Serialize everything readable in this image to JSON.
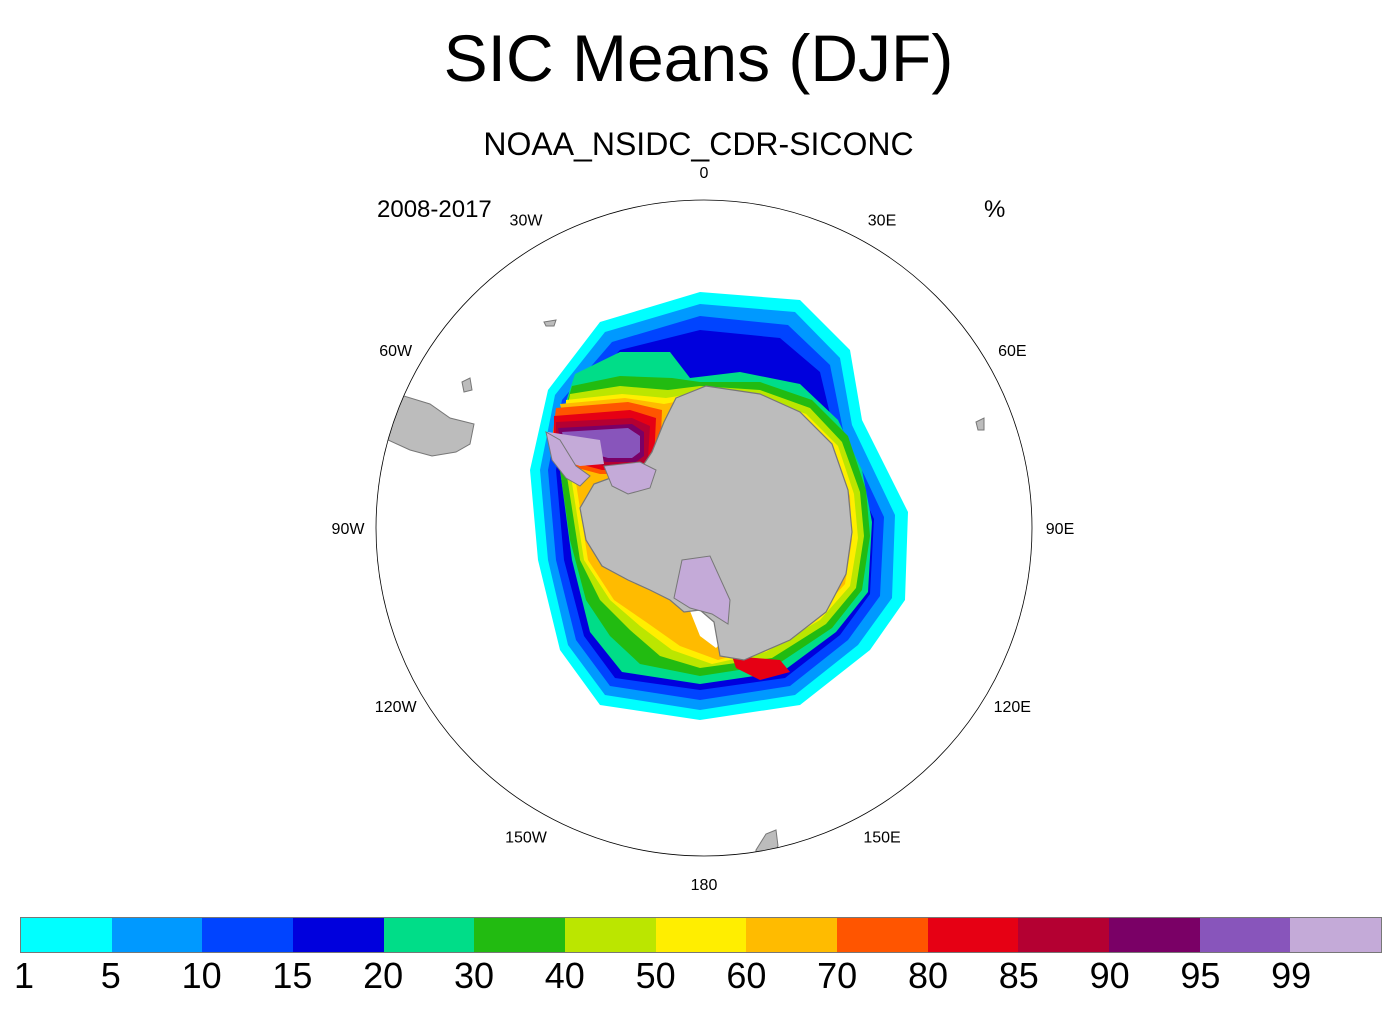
{
  "title": "SIC Means (DJF)",
  "subtitle": "NOAA_NSIDC_CDR-SICONC",
  "period": "2008-2017",
  "units": "%",
  "longitude_labels": [
    "0",
    "30E",
    "60E",
    "90E",
    "120E",
    "150E",
    "180",
    "150W",
    "120W",
    "90W",
    "60W",
    "30W"
  ],
  "colorbar": {
    "colors": [
      "#00ffff",
      "#0099ff",
      "#0044ff",
      "#0000dd",
      "#00dd88",
      "#22bb11",
      "#bbe600",
      "#ffee00",
      "#ffbb00",
      "#ff5500",
      "#e60014",
      "#b40032",
      "#7a0066",
      "#8855bb",
      "#c4aad8"
    ],
    "labels": [
      "1",
      "5",
      "10",
      "15",
      "20",
      "30",
      "40",
      "50",
      "60",
      "70",
      "80",
      "85",
      "90",
      "95",
      "99"
    ]
  },
  "colors": {
    "land": "#bcbcbc",
    "land_outline": "#777777",
    "ice_shelf": "#c4aad8"
  }
}
